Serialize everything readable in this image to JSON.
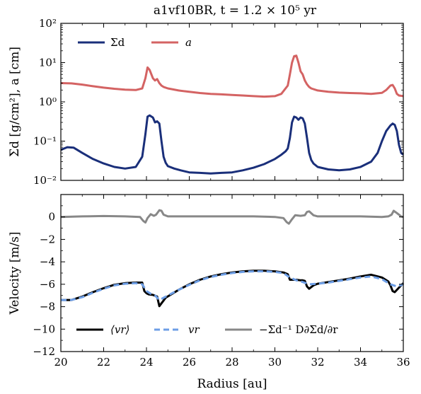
{
  "title": "a1vf10BR, t = 1.2 × 10⁵ yr",
  "colors": {
    "sigma_d": "#1a2f7a",
    "a": "#d46363",
    "vr_mean": "#000000",
    "vr": "#6d9ee6",
    "diffusion": "#888888"
  },
  "chart_data": [
    {
      "type": "line",
      "panel": "top",
      "xlim": [
        20,
        36
      ],
      "ylim": [
        0.01,
        100
      ],
      "yscale": "log",
      "ylabel": "Σd [g/cm²], a [cm]",
      "xticks": [
        "20",
        "22",
        "24",
        "26",
        "28",
        "30",
        "32",
        "34",
        "36"
      ],
      "yticks": [
        "10⁻²",
        "10⁻¹",
        "10⁰",
        "10¹",
        "10²"
      ],
      "yticks_values": [
        0.01,
        0.1,
        1,
        10,
        100
      ],
      "legend_position": "top-left",
      "series": [
        {
          "name": "Σd",
          "color": "#1a2f7a",
          "x": [
            20,
            20.3,
            20.6,
            21,
            21.5,
            22,
            22.5,
            23,
            23.5,
            23.8,
            23.95,
            24.05,
            24.15,
            24.3,
            24.4,
            24.5,
            24.6,
            24.7,
            24.8,
            24.9,
            25,
            25.3,
            25.6,
            26,
            26.5,
            27,
            27.5,
            28,
            28.5,
            29,
            29.5,
            30,
            30.3,
            30.5,
            30.6,
            30.7,
            30.8,
            30.9,
            31,
            31.1,
            31.2,
            31.3,
            31.4,
            31.5,
            31.6,
            31.7,
            31.8,
            32,
            32.5,
            33,
            33.5,
            34,
            34.5,
            34.8,
            35,
            35.2,
            35.4,
            35.5,
            35.6,
            35.7,
            35.8,
            35.9,
            36
          ],
          "y": [
            0.06,
            0.07,
            0.068,
            0.05,
            0.035,
            0.027,
            0.022,
            0.02,
            0.022,
            0.04,
            0.15,
            0.42,
            0.45,
            0.4,
            0.3,
            0.32,
            0.28,
            0.1,
            0.04,
            0.028,
            0.023,
            0.02,
            0.018,
            0.016,
            0.0155,
            0.015,
            0.0155,
            0.016,
            0.018,
            0.021,
            0.026,
            0.035,
            0.045,
            0.055,
            0.065,
            0.12,
            0.3,
            0.42,
            0.4,
            0.35,
            0.4,
            0.38,
            0.28,
            0.12,
            0.05,
            0.033,
            0.027,
            0.022,
            0.019,
            0.018,
            0.019,
            0.022,
            0.03,
            0.05,
            0.1,
            0.18,
            0.25,
            0.28,
            0.26,
            0.18,
            0.08,
            0.05,
            0.045
          ]
        },
        {
          "name": "a",
          "color": "#d46363",
          "x": [
            20,
            20.5,
            21,
            21.5,
            22,
            22.5,
            23,
            23.5,
            23.8,
            23.95,
            24.05,
            24.15,
            24.3,
            24.4,
            24.5,
            24.6,
            24.7,
            24.8,
            25,
            25.5,
            26,
            26.5,
            27,
            27.5,
            28,
            28.5,
            29,
            29.5,
            30,
            30.3,
            30.6,
            30.7,
            30.8,
            30.9,
            31,
            31.1,
            31.2,
            31.3,
            31.4,
            31.5,
            31.6,
            31.7,
            32,
            32.5,
            33,
            33.5,
            34,
            34.5,
            35,
            35.2,
            35.4,
            35.5,
            35.6,
            35.7,
            35.8,
            36
          ],
          "y": [
            3,
            2.95,
            2.75,
            2.5,
            2.3,
            2.15,
            2.05,
            2.0,
            2.2,
            4.0,
            7.5,
            6.5,
            4.0,
            3.5,
            3.8,
            3.0,
            2.6,
            2.4,
            2.2,
            1.95,
            1.8,
            1.68,
            1.6,
            1.55,
            1.5,
            1.45,
            1.4,
            1.36,
            1.4,
            1.6,
            2.6,
            5.0,
            10.0,
            14.5,
            15.0,
            10.0,
            6.0,
            5.0,
            3.5,
            2.8,
            2.4,
            2.2,
            1.95,
            1.8,
            1.72,
            1.68,
            1.65,
            1.6,
            1.7,
            2.0,
            2.6,
            2.7,
            2.2,
            1.6,
            1.45,
            1.4
          ]
        }
      ]
    },
    {
      "type": "line",
      "panel": "bottom",
      "xlim": [
        20,
        36
      ],
      "ylim": [
        -12,
        2
      ],
      "xlabel": "Radius [au]",
      "ylabel": "Velocity [m/s]",
      "xticks": [
        "20",
        "22",
        "24",
        "26",
        "28",
        "30",
        "32",
        "34",
        "36"
      ],
      "yticks": [
        "0",
        "−2",
        "−4",
        "−6",
        "−8",
        "−10",
        "−12"
      ],
      "yticks_values": [
        0,
        -2,
        -4,
        -6,
        -8,
        -10,
        -12
      ],
      "legend_position": "bottom",
      "series": [
        {
          "name": "⟨vr⟩",
          "color": "#000000",
          "x": [
            20,
            20.5,
            21,
            21.5,
            22,
            22.5,
            23,
            23.5,
            23.8,
            23.9,
            24.0,
            24.1,
            24.3,
            24.5,
            24.6,
            24.7,
            24.9,
            25.5,
            26,
            26.5,
            27,
            27.5,
            28,
            28.5,
            29,
            29.5,
            30,
            30.4,
            30.6,
            30.7,
            30.8,
            31,
            31.2,
            31.3,
            31.4,
            31.5,
            31.6,
            31.8,
            32,
            32.5,
            33,
            33.5,
            34,
            34.5,
            35,
            35.3,
            35.4,
            35.5,
            35.6,
            35.8,
            36
          ],
          "y": [
            -7.4,
            -7.4,
            -7.1,
            -6.7,
            -6.35,
            -6.05,
            -5.9,
            -5.85,
            -5.85,
            -6.6,
            -6.8,
            -6.9,
            -6.95,
            -7.1,
            -7.95,
            -7.7,
            -7.2,
            -6.5,
            -6.0,
            -5.6,
            -5.3,
            -5.1,
            -4.95,
            -4.85,
            -4.8,
            -4.8,
            -4.85,
            -4.95,
            -5.1,
            -5.6,
            -5.6,
            -5.6,
            -5.65,
            -5.65,
            -5.7,
            -6.2,
            -6.4,
            -6.1,
            -5.95,
            -5.8,
            -5.65,
            -5.5,
            -5.3,
            -5.15,
            -5.4,
            -5.75,
            -6.1,
            -6.6,
            -6.7,
            -6.3,
            -5.9
          ]
        },
        {
          "name": "vr",
          "color": "#6d9ee6",
          "x": [
            20,
            20.5,
            21,
            21.5,
            22,
            22.5,
            23,
            23.5,
            23.8,
            24.0,
            24.2,
            24.4,
            24.6,
            24.8,
            25,
            25.5,
            26,
            26.5,
            27,
            27.5,
            28,
            28.5,
            29,
            29.5,
            30,
            30.4,
            30.7,
            31,
            31.3,
            31.6,
            32,
            32.5,
            33,
            33.5,
            34,
            34.5,
            35,
            35.4,
            35.7,
            36
          ],
          "y": [
            -7.4,
            -7.4,
            -7.15,
            -6.75,
            -6.4,
            -6.1,
            -5.95,
            -5.9,
            -6.0,
            -6.6,
            -6.85,
            -7.0,
            -7.4,
            -7.2,
            -7.0,
            -6.5,
            -6.05,
            -5.65,
            -5.35,
            -5.15,
            -5.0,
            -4.9,
            -4.85,
            -4.85,
            -4.9,
            -5.0,
            -5.4,
            -5.65,
            -5.8,
            -6.0,
            -5.95,
            -5.85,
            -5.7,
            -5.55,
            -5.4,
            -5.3,
            -5.55,
            -6.0,
            -6.2,
            -6.0
          ]
        },
        {
          "name": "−Σd⁻¹ D∂Σd/∂r",
          "color": "#888888",
          "x": [
            20,
            21,
            22,
            23,
            23.7,
            23.85,
            23.95,
            24.05,
            24.2,
            24.35,
            24.45,
            24.6,
            24.7,
            24.8,
            25,
            26,
            27,
            28,
            29,
            30,
            30.4,
            30.55,
            30.65,
            30.8,
            30.95,
            31.2,
            31.4,
            31.5,
            31.6,
            31.8,
            32,
            33,
            34,
            35,
            35.3,
            35.45,
            35.55,
            35.7,
            35.9,
            36
          ],
          "y": [
            0,
            0.05,
            0.08,
            0.05,
            0,
            -0.35,
            -0.5,
            -0.1,
            0.25,
            0.1,
            0.2,
            0.6,
            0.55,
            0.2,
            0.05,
            0.05,
            0.05,
            0.05,
            0.05,
            0,
            -0.1,
            -0.45,
            -0.6,
            -0.2,
            0.15,
            0.1,
            0.15,
            0.45,
            0.5,
            0.15,
            0.05,
            0.05,
            0.05,
            0,
            0.05,
            0.2,
            0.55,
            0.35,
            0.05,
            0
          ]
        }
      ]
    }
  ],
  "top_legend": {
    "sigma_label": "Σd",
    "a_label": "a"
  },
  "bottom_legend": {
    "vr_mean_label": "⟨vr⟩",
    "vr_label": "vr",
    "diff_label": "−Σd⁻¹ D∂Σd/∂r"
  }
}
